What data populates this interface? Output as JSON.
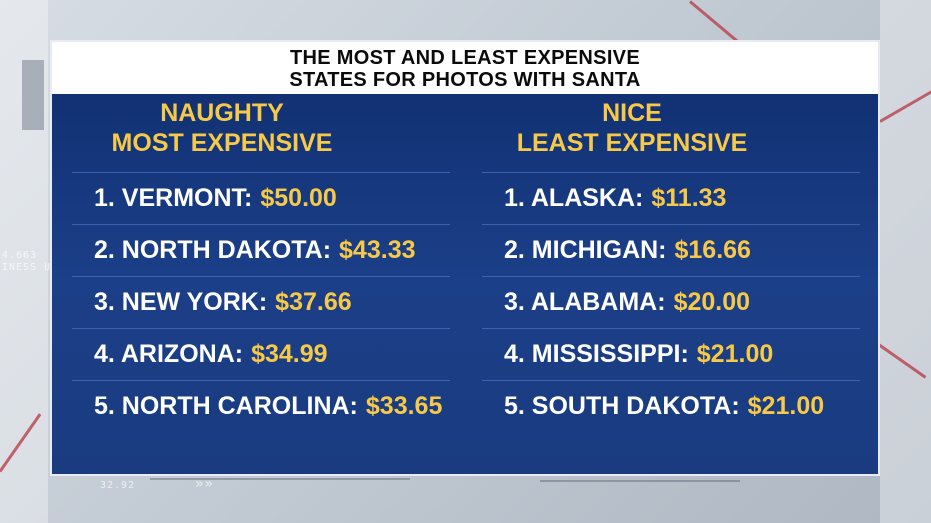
{
  "title": {
    "line1": "THE MOST AND LEAST EXPENSIVE",
    "line2": "STATES FOR PHOTOS WITH SANTA"
  },
  "hud": {
    "t1": "4.663",
    "t2": "INESS U",
    "t3": "32.92"
  },
  "colors": {
    "panel": "#0f2d6e",
    "accent": "#f7c948",
    "text": "#ffffff"
  },
  "naughty": {
    "heading1": "NAUGHTY",
    "heading2": "MOST EXPENSIVE",
    "items": [
      {
        "label": "1. VERMONT:",
        "price": "$50.00"
      },
      {
        "label": "2. NORTH DAKOTA:",
        "price": "$43.33"
      },
      {
        "label": "3. NEW YORK:",
        "price": "$37.66"
      },
      {
        "label": "4. ARIZONA:",
        "price": "$34.99"
      },
      {
        "label": "5. NORTH CAROLINA:",
        "price": "$33.65"
      }
    ]
  },
  "nice": {
    "heading1": "NICE",
    "heading2": "LEAST EXPENSIVE",
    "items": [
      {
        "label": "1. ALASKA:",
        "price": "$11.33"
      },
      {
        "label": "2. MICHIGAN:",
        "price": "$16.66"
      },
      {
        "label": "3. ALABAMA:",
        "price": "$20.00"
      },
      {
        "label": "4. MISSISSIPPI:",
        "price": "$21.00"
      },
      {
        "label": "5. SOUTH DAKOTA:",
        "price": "$21.00"
      }
    ]
  }
}
